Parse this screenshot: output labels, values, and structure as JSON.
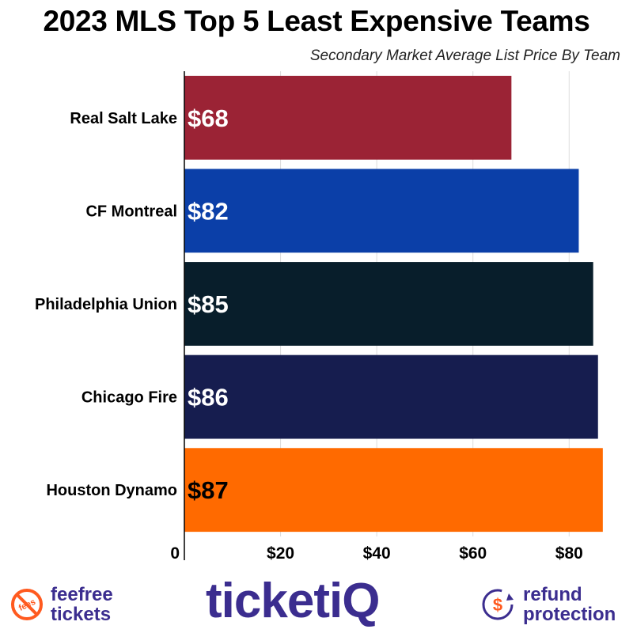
{
  "chart_data": {
    "type": "bar",
    "orientation": "horizontal",
    "title": "2023 MLS Top 5 Least Expensive Teams",
    "subtitle": "Secondary Market Average List Price By Team",
    "categories": [
      "Real Salt Lake",
      "CF Montreal",
      "Philadelphia Union",
      "Chicago Fire",
      "Houston Dynamo"
    ],
    "values": [
      68,
      82,
      85,
      86,
      87
    ],
    "value_labels": [
      "$68",
      "$82",
      "$85",
      "$86",
      "$87"
    ],
    "colors": [
      "#9b2335",
      "#0b3fa8",
      "#081e2b",
      "#161d4f",
      "#ff6a00"
    ],
    "label_colors": [
      "#ffffff",
      "#ffffff",
      "#ffffff",
      "#ffffff",
      "#000000"
    ],
    "xlim": [
      0,
      89
    ],
    "x_ticks": [
      0,
      20,
      40,
      60,
      80
    ],
    "x_tick_labels": [
      "0",
      "$20",
      "$40",
      "$60",
      "$80"
    ],
    "xlabel": "",
    "ylabel": "",
    "grid": true,
    "legend": "none"
  },
  "footer": {
    "feefree": {
      "icon": "no-fees-icon",
      "icon_text": "fees",
      "line1": "feefree",
      "line2": "tickets"
    },
    "ticketiq": {
      "logo_text": "ticketiQ"
    },
    "refund": {
      "icon": "refund-dollar-icon",
      "icon_text": "$",
      "line1": "refund",
      "line2": "protection"
    },
    "brand_color": "#3b2d8f",
    "accent_color": "#ff5a1f"
  }
}
